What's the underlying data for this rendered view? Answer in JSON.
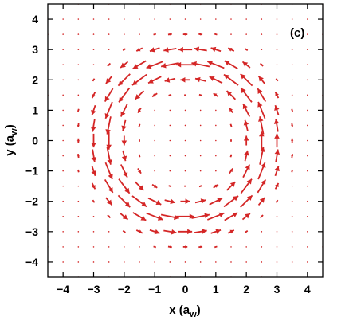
{
  "chart_data": {
    "type": "quiver",
    "panel_label": "(c)",
    "xlabel": {
      "main": "x (a",
      "sub": "w",
      "tail": ")"
    },
    "ylabel": {
      "main": "y (a",
      "sub": "w",
      "tail": ")"
    },
    "xlim": [
      -4.5,
      4.5
    ],
    "ylim": [
      -4.5,
      4.5
    ],
    "xticks": [
      -4,
      -3,
      -2,
      -1,
      0,
      1,
      2,
      3,
      4
    ],
    "yticks": [
      -4,
      -3,
      -2,
      -1,
      0,
      1,
      2,
      3,
      4
    ],
    "grid": false,
    "arrow_color": "#d42626",
    "field": {
      "description": "counter-clockwise circulating vector field",
      "grid_spacing": 0.5,
      "grid_extent": 4.5,
      "vortex_radius": 2.6,
      "ring_width": 0.75,
      "max_arrow_length": 0.6
    }
  }
}
